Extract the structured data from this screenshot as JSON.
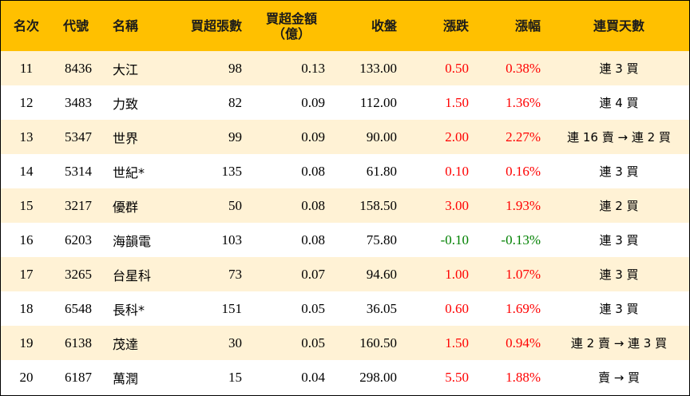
{
  "headers": {
    "rank": "名次",
    "code": "代號",
    "name": "名稱",
    "net_buy_lots": "買超張數",
    "net_buy_amount_line1": "買超金額",
    "net_buy_amount_line2": "（億）",
    "close": "收盤",
    "change": "漲跌",
    "change_pct": "漲幅",
    "consecutive_days": "連買天數"
  },
  "rows": [
    {
      "rank": "11",
      "code": "8436",
      "name": "大江",
      "lots": "98",
      "amount": "0.13",
      "close": "133.00",
      "change": "0.50",
      "pct": "0.38%",
      "days": "連 3 買",
      "dir": "up"
    },
    {
      "rank": "12",
      "code": "3483",
      "name": "力致",
      "lots": "82",
      "amount": "0.09",
      "close": "112.00",
      "change": "1.50",
      "pct": "1.36%",
      "days": "連 4 買",
      "dir": "up"
    },
    {
      "rank": "13",
      "code": "5347",
      "name": "世界",
      "lots": "99",
      "amount": "0.09",
      "close": "90.00",
      "change": "2.00",
      "pct": "2.27%",
      "days": "連 16 賣 → 連 2 買",
      "dir": "up"
    },
    {
      "rank": "14",
      "code": "5314",
      "name": "世紀*",
      "lots": "135",
      "amount": "0.08",
      "close": "61.80",
      "change": "0.10",
      "pct": "0.16%",
      "days": "連 3 買",
      "dir": "up"
    },
    {
      "rank": "15",
      "code": "3217",
      "name": "優群",
      "lots": "50",
      "amount": "0.08",
      "close": "158.50",
      "change": "3.00",
      "pct": "1.93%",
      "days": "連 2 買",
      "dir": "up"
    },
    {
      "rank": "16",
      "code": "6203",
      "name": "海韻電",
      "lots": "103",
      "amount": "0.08",
      "close": "75.80",
      "change": "-0.10",
      "pct": "-0.13%",
      "days": "連 3 買",
      "dir": "down"
    },
    {
      "rank": "17",
      "code": "3265",
      "name": "台星科",
      "lots": "73",
      "amount": "0.07",
      "close": "94.60",
      "change": "1.00",
      "pct": "1.07%",
      "days": "連 3 買",
      "dir": "up"
    },
    {
      "rank": "18",
      "code": "6548",
      "name": "長科*",
      "lots": "151",
      "amount": "0.05",
      "close": "36.05",
      "change": "0.60",
      "pct": "1.69%",
      "days": "連 3 買",
      "dir": "up"
    },
    {
      "rank": "19",
      "code": "6138",
      "name": "茂達",
      "lots": "30",
      "amount": "0.05",
      "close": "160.50",
      "change": "1.50",
      "pct": "0.94%",
      "days": "連 2 賣 → 連 3 買",
      "dir": "up"
    },
    {
      "rank": "20",
      "code": "6187",
      "name": "萬潤",
      "lots": "15",
      "amount": "0.04",
      "close": "298.00",
      "change": "5.50",
      "pct": "1.88%",
      "days": "賣 → 買",
      "dir": "up"
    }
  ],
  "colors": {
    "header_bg": "#ffc000",
    "odd_row_bg": "#fff2d5",
    "even_row_bg": "#ffffff",
    "up": "#ff0000",
    "down": "#008000"
  }
}
